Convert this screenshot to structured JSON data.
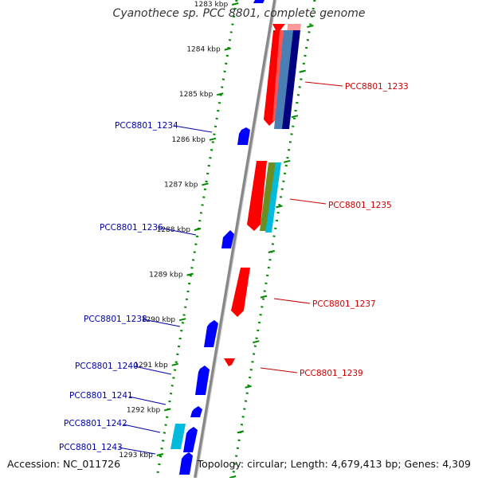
{
  "title": "Cyanothece sp. PCC 8801, complete genome",
  "footer": {
    "accession": "Accession: NC_011726",
    "summary": "Topology: circular; Length: 4,679,413 bp; Genes: 4,309"
  },
  "ruler": {
    "ticks": [
      "1283 kbp",
      "1284 kbp",
      "1285 kbp",
      "1286 kbp",
      "1287 kbp",
      "1288 kbp",
      "1289 kbp",
      "1290 kbp",
      "1291 kbp",
      "1292 kbp",
      "1293 kbp"
    ]
  },
  "gene_labels": {
    "forward": [
      "PCC8801_1233",
      "PCC8801_1235",
      "PCC8801_1237",
      "PCC8801_1239"
    ],
    "reverse": [
      "PCC8801_1234",
      "PCC8801_1236",
      "PCC8801_1238",
      "PCC8801_1240",
      "PCC8801_1241",
      "PCC8801_1242",
      "PCC8801_1243"
    ]
  },
  "colors": {
    "forward_strand": "#ff0000",
    "reverse_strand": "#0000ff",
    "forward_label": "#cc0000",
    "reverse_label": "#0000aa",
    "backbone": "#888888",
    "ruler": "#008800",
    "cyan": "#00bbdd",
    "steel": "#4a7fb5",
    "navy": "#000080",
    "olive": "#6b8e23"
  }
}
